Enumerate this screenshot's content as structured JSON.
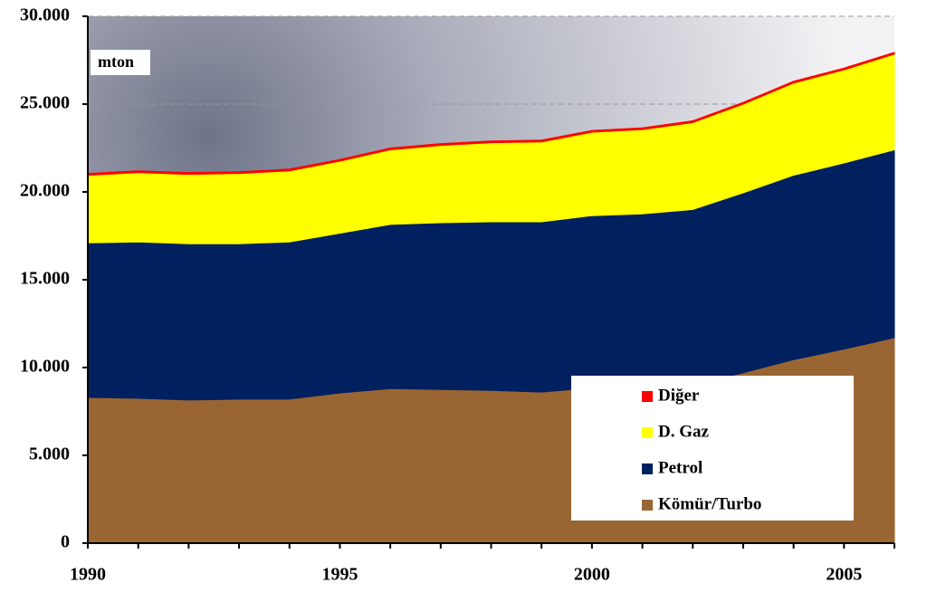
{
  "chart_data": {
    "type": "stacked-area",
    "annotation": "mton",
    "x": [
      1990,
      1991,
      1992,
      1993,
      1994,
      1995,
      1996,
      1997,
      1998,
      1999,
      2000,
      2001,
      2002,
      2003,
      2004,
      2005,
      2006
    ],
    "series": [
      {
        "name": "Kömür/Turbo",
        "color": "#996633",
        "values": [
          8300,
          8250,
          8150,
          8200,
          8200,
          8550,
          8800,
          8750,
          8700,
          8600,
          8850,
          8900,
          9000,
          9700,
          10450,
          11050,
          11700
        ]
      },
      {
        "name": "Petrol",
        "color": "#002060",
        "values": [
          8800,
          8900,
          8900,
          8850,
          8950,
          9100,
          9350,
          9500,
          9600,
          9700,
          9800,
          9850,
          10000,
          10250,
          10500,
          10600,
          10700
        ]
      },
      {
        "name": "D. Gaz",
        "color": "#ffff00",
        "values": [
          3850,
          3950,
          3950,
          4000,
          4050,
          4100,
          4250,
          4400,
          4500,
          4550,
          4750,
          4800,
          4950,
          5050,
          5250,
          5300,
          5450
        ]
      },
      {
        "name": "Diğer",
        "color": "#ff0000",
        "values": [
          100,
          100,
          100,
          100,
          100,
          100,
          100,
          100,
          100,
          100,
          100,
          100,
          100,
          100,
          100,
          100,
          100
        ]
      }
    ],
    "xlim": [
      1990,
      2006
    ],
    "xticks": [
      1990,
      1995,
      2000,
      2005
    ],
    "ylim": [
      0,
      30000
    ],
    "yticks": [
      {
        "value": 0,
        "label": "0"
      },
      {
        "value": 5000,
        "label": "5.000"
      },
      {
        "value": 10000,
        "label": "10.000"
      },
      {
        "value": 15000,
        "label": "15.000"
      },
      {
        "value": 20000,
        "label": "20.000"
      },
      {
        "value": 25000,
        "label": "25.000"
      },
      {
        "value": 30000,
        "label": "30.000"
      }
    ],
    "grid": true,
    "legend": "bottom-right"
  }
}
